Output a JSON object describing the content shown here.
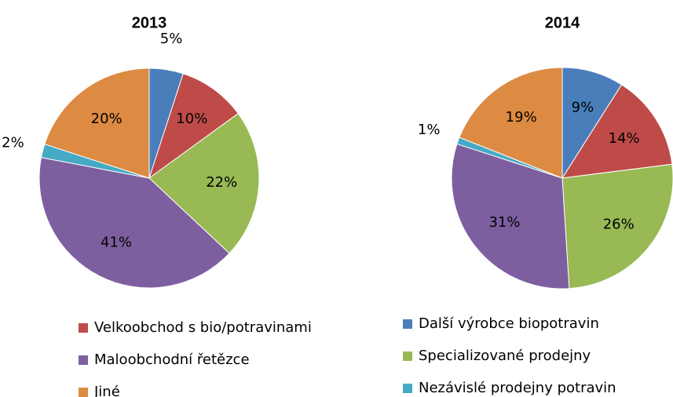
{
  "chart_data": [
    {
      "type": "pie",
      "title": "2013",
      "categories": [
        "Další výrobce biopotravin",
        "Velkoobchod s bio/potravinami",
        "Specializované prodejny",
        "Maloobchodní řetězce",
        "Nezávislé prodejny potravin",
        "Jiné"
      ],
      "values": [
        5,
        10,
        22,
        41,
        2,
        20
      ],
      "value_labels": [
        "5%",
        "10%",
        "22%",
        "41%",
        "2%",
        "20%"
      ],
      "colors": [
        "#4a7ebb",
        "#be4b48",
        "#98b954",
        "#7d5fa0",
        "#46aac5",
        "#dd8a42"
      ],
      "legend": true
    },
    {
      "type": "pie",
      "title": "2014",
      "categories": [
        "Další výrobce biopotravin",
        "Velkoobchod s bio/potravinami",
        "Specializované prodejny",
        "Maloobchodní řetězce",
        "Nezávislé prodejny potravin",
        "Jiné"
      ],
      "values": [
        9,
        14,
        26,
        31,
        1,
        19
      ],
      "value_labels": [
        "9%",
        "14%",
        "26%",
        "31%",
        "1%",
        "19%"
      ],
      "colors": [
        "#4a7ebb",
        "#be4b48",
        "#98b954",
        "#7d5fa0",
        "#46aac5",
        "#dd8a42"
      ],
      "legend": false
    }
  ]
}
